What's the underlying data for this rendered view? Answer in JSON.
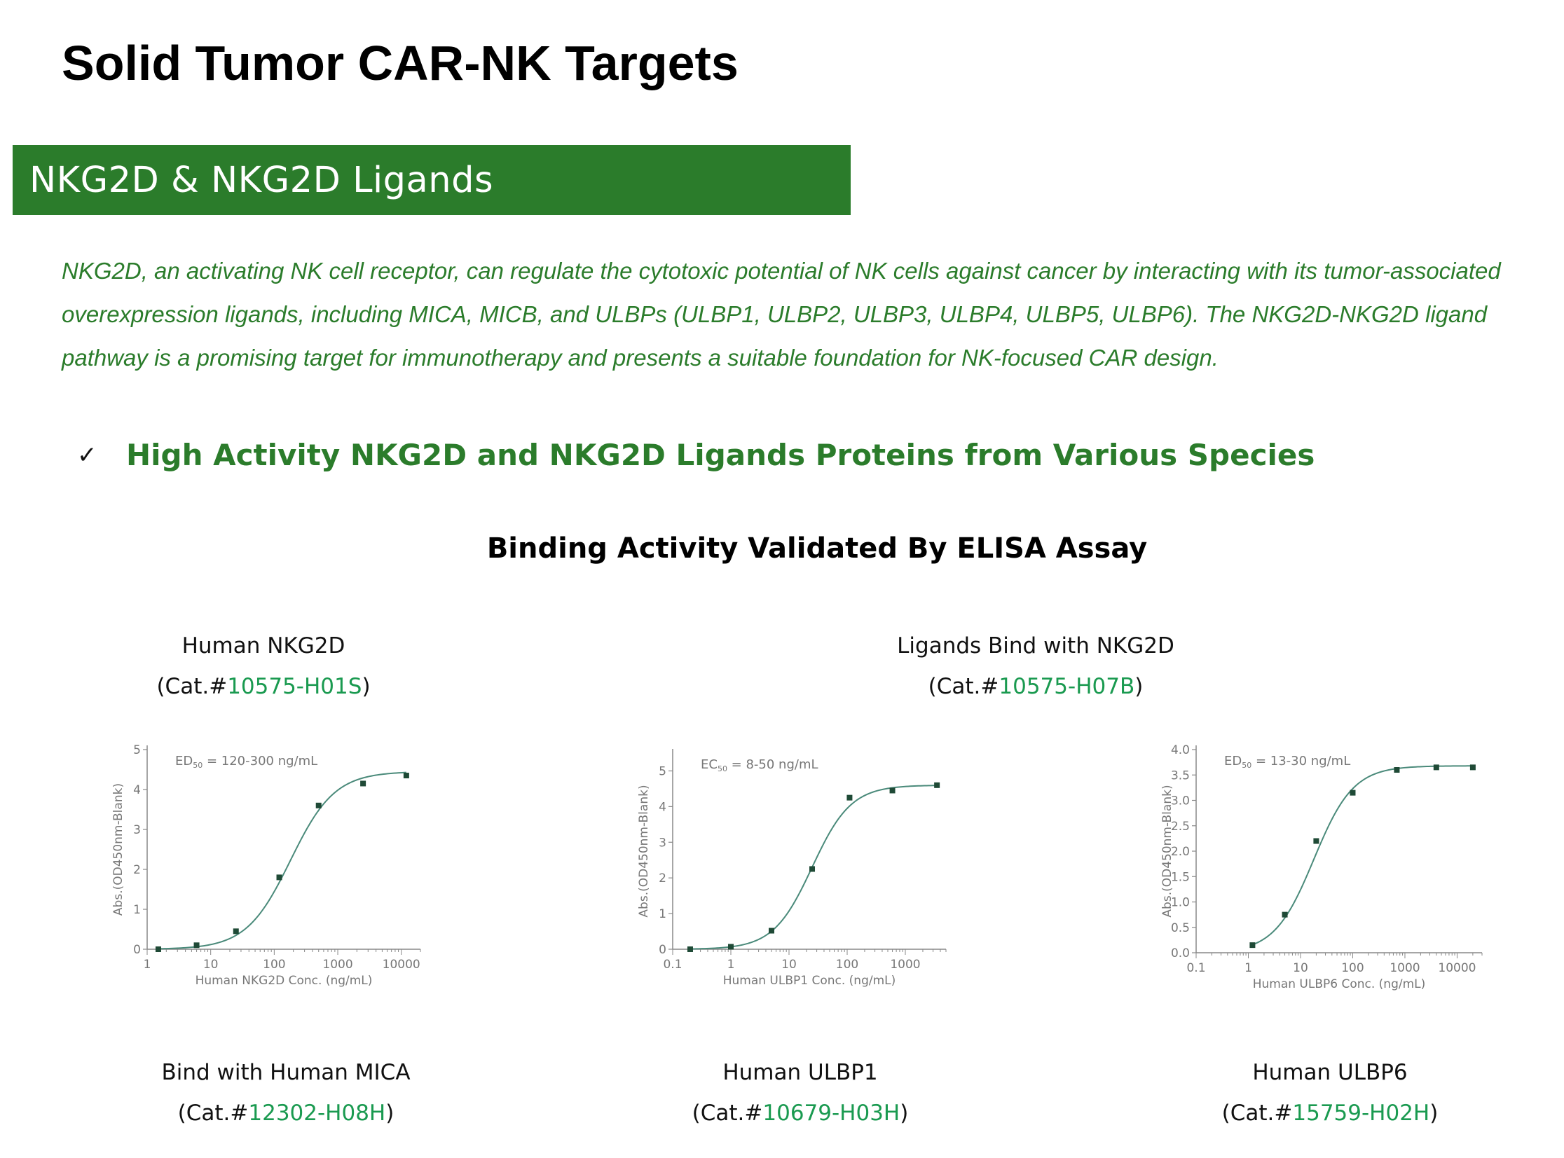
{
  "title": "Solid Tumor CAR-NK Targets",
  "banner": "NKG2D & NKG2D Ligands",
  "intro": "NKG2D, an activating NK cell receptor, can regulate the cytotoxic potential of NK cells against cancer by interacting with its tumor-associated overexpression ligands, including MICA, MICB, and ULBPs (ULBP1, ULBP2, ULBP3, ULBP4, ULBP5, ULBP6). The NKG2D-NKG2D ligand pathway is a promising target for immunotherapy and presents a suitable foundation for NK-focused CAR design.",
  "feature": {
    "check_icon": "checkmark-icon",
    "text": "High Activity NKG2D and NKG2D Ligands Proteins from Various Species"
  },
  "subhead": "Binding Activity Validated By ELISA Assay",
  "top_captions": [
    {
      "name": "Human NKG2D",
      "cat_prefix": "(Cat.#",
      "cat_number": "10575-H01S",
      "cat_suffix": ")"
    },
    {
      "name": "Ligands Bind with NKG2D",
      "cat_prefix": "(Cat.#",
      "cat_number": "10575-H07B",
      "cat_suffix": ")"
    }
  ],
  "bottom_captions": [
    {
      "name": "Bind with Human MICA",
      "cat_prefix": "(Cat.#",
      "cat_number": "12302-H08H",
      "cat_suffix": ")"
    },
    {
      "name": "Human ULBP1",
      "cat_prefix": "(Cat.#",
      "cat_number": "10679-H03H",
      "cat_suffix": ")"
    },
    {
      "name": "Human ULBP6",
      "cat_prefix": "(Cat.#",
      "cat_number": "15759-H02H",
      "cat_suffix": ")"
    }
  ],
  "colors": {
    "green": "#2b7c2b",
    "cat_green": "#1a9a50",
    "curve": "#4a8a7a",
    "point": "#1f4a36"
  },
  "chart_data": [
    {
      "type": "scatter",
      "xscale": "log",
      "xlim": [
        1,
        20000
      ],
      "ylim": [
        0,
        5
      ],
      "xticks": [
        1,
        10,
        100,
        1000,
        10000
      ],
      "xtick_labels": [
        "1",
        "10",
        "100",
        "1000",
        "10000"
      ],
      "yticks": [
        0,
        1,
        2,
        3,
        4,
        5
      ],
      "ytick_labels": [
        "0",
        "1",
        "2",
        "3",
        "4",
        "5"
      ],
      "xlabel": "Human NKG2D Conc. (ng/mL)",
      "ylabel": "Abs.(OD450nm-Blank)",
      "annotation": "ED50 = 120-300 ng/mL",
      "annotation_sub": {
        "base": "ED",
        "sub": "50",
        "rest": " = 120-300 ng/mL"
      },
      "x": [
        1.5,
        6,
        25,
        120,
        500,
        2500,
        12000
      ],
      "y": [
        0.0,
        0.1,
        0.45,
        1.8,
        3.6,
        4.15,
        4.35
      ],
      "fit": {
        "bottom": 0.0,
        "top": 4.45,
        "ec50": 180,
        "hill": 1.25
      }
    },
    {
      "type": "scatter",
      "xscale": "log",
      "xlim": [
        0.1,
        5000
      ],
      "ylim": [
        0,
        5.5
      ],
      "xticks": [
        0.1,
        1,
        10,
        100,
        1000
      ],
      "xtick_labels": [
        "0.1",
        "1",
        "10",
        "100",
        "1000"
      ],
      "yticks": [
        0,
        1,
        2,
        3,
        4,
        5
      ],
      "ytick_labels": [
        "0",
        "1",
        "2",
        "3",
        "4",
        "5"
      ],
      "xlabel": "Human ULBP1 Conc. (ng/mL)",
      "ylabel": "Abs.(OD450nm-Blank)",
      "annotation": "EC50 = 8-50 ng/mL",
      "annotation_sub": {
        "base": "EC",
        "sub": "50",
        "rest": " = 8-50 ng/mL"
      },
      "x": [
        0.2,
        1,
        5,
        25,
        110,
        600,
        3500
      ],
      "y": [
        0.0,
        0.07,
        0.52,
        2.25,
        4.25,
        4.45,
        4.6
      ],
      "fit": {
        "bottom": 0.0,
        "top": 4.6,
        "ec50": 25,
        "hill": 1.3
      }
    },
    {
      "type": "scatter",
      "xscale": "log",
      "xlim": [
        0.1,
        30000
      ],
      "ylim": [
        0,
        4.0
      ],
      "xticks": [
        0.1,
        1,
        10,
        100,
        1000,
        10000
      ],
      "xtick_labels": [
        "0.1",
        "1",
        "10",
        "100",
        "1000",
        "10000"
      ],
      "yticks": [
        0,
        0.5,
        1,
        1.5,
        2,
        2.5,
        3,
        3.5,
        4
      ],
      "ytick_labels": [
        "0.0",
        "0.5",
        "1.0",
        "1.5",
        "2.0",
        "2.5",
        "3.0",
        "3.5",
        "4.0"
      ],
      "xlabel": "Human ULBP6 Conc. (ng/mL)",
      "ylabel": "Abs.(OD450nm-Blank)",
      "annotation": "ED50 = 13-30 ng/mL",
      "annotation_sub": {
        "base": "ED",
        "sub": "50",
        "rest": " = 13-30 ng/mL"
      },
      "x": [
        1.2,
        5,
        20,
        100,
        700,
        4000,
        20000
      ],
      "y": [
        0.15,
        0.75,
        2.2,
        3.15,
        3.6,
        3.65,
        3.65
      ],
      "fit": {
        "bottom": 0.0,
        "top": 3.68,
        "ec50": 18,
        "hill": 1.15
      }
    }
  ]
}
